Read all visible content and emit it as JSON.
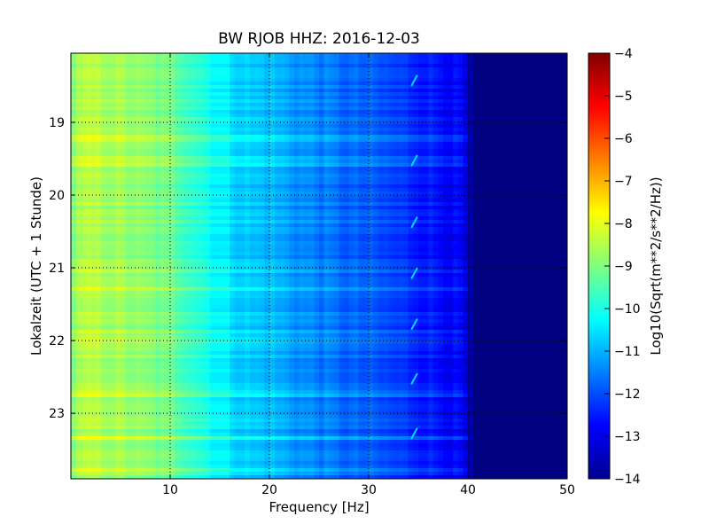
{
  "chart_data": {
    "type": "heatmap",
    "title": "BW RJOB HHZ: 2016-12-03",
    "xlabel": "Frequency [Hz]",
    "ylabel": "Lokalzeit (UTC + 1 Stunde)",
    "xlim": [
      0,
      50
    ],
    "ylim": [
      18.05,
      23.9
    ],
    "y_inverted": true,
    "x_ticks": [
      "10",
      "20",
      "30",
      "40",
      "50"
    ],
    "x_tick_values": [
      10,
      20,
      30,
      40,
      50
    ],
    "y_ticks": [
      "19",
      "20",
      "21",
      "22",
      "23"
    ],
    "y_tick_values": [
      19,
      20,
      21,
      22,
      23
    ],
    "grid": true,
    "colormap": "jet",
    "colorbar": {
      "label": "Log10(Sqrt(m**2/s**2/Hz))",
      "range": [
        -14,
        -4
      ],
      "ticks": [
        "−4",
        "−5",
        "−6",
        "−7",
        "−8",
        "−9",
        "−10",
        "−11",
        "−12",
        "−13",
        "−14"
      ],
      "tick_values": [
        -4,
        -5,
        -6,
        -7,
        -8,
        -9,
        -10,
        -11,
        -12,
        -13,
        -14
      ]
    },
    "spectral_profile": {
      "frequency_hz": [
        0,
        1,
        2,
        5,
        8,
        10,
        12,
        14,
        16,
        18,
        20,
        22,
        24,
        26,
        28,
        30,
        32,
        34,
        36,
        38,
        39.5,
        40.5,
        45,
        50
      ],
      "log10_amplitude": [
        -9.0,
        -8.6,
        -8.5,
        -8.7,
        -9.0,
        -9.2,
        -9.6,
        -10.1,
        -10.5,
        -10.8,
        -10.9,
        -11.2,
        -11.4,
        -11.6,
        -11.8,
        -11.9,
        -12.1,
        -12.3,
        -12.5,
        -12.7,
        -12.9,
        -14.0,
        -14.0,
        -14.0
      ]
    },
    "narrowband_line_hz": 34.5,
    "narrowband_events_hours": [
      18.35,
      19.45,
      20.3,
      21.0,
      21.7,
      22.45,
      23.2
    ]
  }
}
